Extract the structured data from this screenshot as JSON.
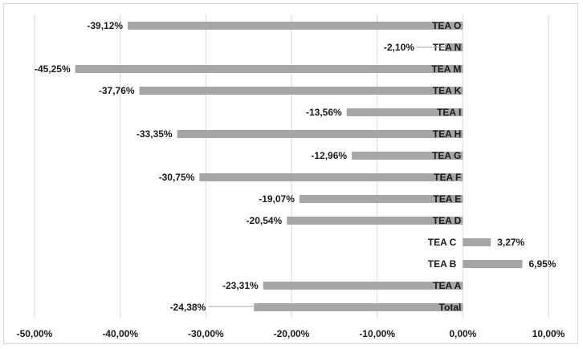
{
  "chart_data": {
    "type": "bar",
    "orientation": "horizontal",
    "title": "",
    "xlabel": "",
    "ylabel": "",
    "xlim": [
      -50,
      10
    ],
    "x_ticks": [
      -50,
      -40,
      -30,
      -20,
      -10,
      0,
      10
    ],
    "x_tick_labels": [
      "-50,00%",
      "-40,00%",
      "-30,00%",
      "-20,00%",
      "-10,00%",
      "0,00%",
      "10,00%"
    ],
    "grid": "vertical",
    "legend": "none",
    "bar_color": "#a6a6a6",
    "categories": [
      "TEA O",
      "TEA N",
      "TEA M",
      "TEA K",
      "TEA I",
      "TEA H",
      "TEA G",
      "TEA F",
      "TEA E",
      "TEA D",
      "TEA C",
      "TEA B",
      "TEA A",
      "Total"
    ],
    "values": [
      -39.12,
      -2.1,
      -45.25,
      -37.76,
      -13.56,
      -33.35,
      -12.96,
      -30.75,
      -19.07,
      -20.54,
      3.27,
      6.95,
      -23.31,
      -24.38
    ],
    "value_labels": [
      "-39,12%",
      "-2,10%",
      "-45,25%",
      "-37,76%",
      "-13,56%",
      "-33,35%",
      "-12,96%",
      "-30,75%",
      "-19,07%",
      "-20,54%",
      "3,27%",
      "6,95%",
      "-23,31%",
      "-24,38%"
    ]
  }
}
